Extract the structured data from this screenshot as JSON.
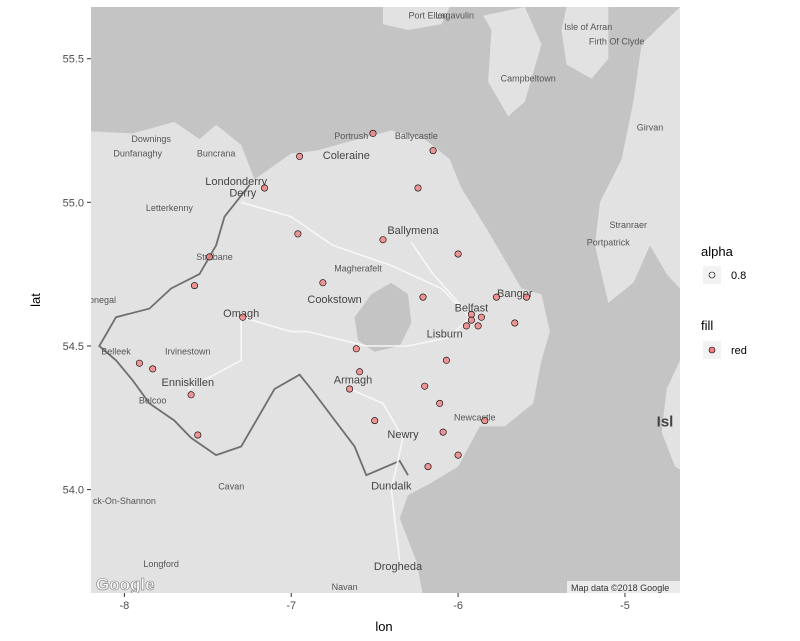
{
  "chart_data": {
    "type": "scatter",
    "xlabel": "lon",
    "ylabel": "lat",
    "xlim": [
      -8.2,
      -4.67
    ],
    "ylim": [
      53.64,
      55.68
    ],
    "x_ticks": [
      -8,
      -7,
      -6,
      -5
    ],
    "y_ticks": [
      54.0,
      54.5,
      55.0,
      55.5
    ],
    "x_tick_labels": [
      "-8",
      "-7",
      "-6",
      "-5"
    ],
    "y_tick_labels": [
      "54.0",
      "54.5",
      "55.0",
      "55.5"
    ],
    "point_color": "#f08080",
    "point_stroke": "#000000",
    "points": [
      {
        "lon": -6.51,
        "lat": 55.24
      },
      {
        "lon": -6.15,
        "lat": 55.18
      },
      {
        "lon": -6.95,
        "lat": 55.16
      },
      {
        "lon": -7.16,
        "lat": 55.05
      },
      {
        "lon": -6.24,
        "lat": 55.05
      },
      {
        "lon": -6.96,
        "lat": 54.89
      },
      {
        "lon": -6.45,
        "lat": 54.87
      },
      {
        "lon": -7.49,
        "lat": 54.81
      },
      {
        "lon": -6.0,
        "lat": 54.82
      },
      {
        "lon": -6.81,
        "lat": 54.72
      },
      {
        "lon": -7.58,
        "lat": 54.71
      },
      {
        "lon": -6.21,
        "lat": 54.67
      },
      {
        "lon": -5.77,
        "lat": 54.67
      },
      {
        "lon": -5.59,
        "lat": 54.67
      },
      {
        "lon": -5.92,
        "lat": 54.61
      },
      {
        "lon": -5.86,
        "lat": 54.6
      },
      {
        "lon": -5.92,
        "lat": 54.59
      },
      {
        "lon": -5.95,
        "lat": 54.57
      },
      {
        "lon": -5.88,
        "lat": 54.57
      },
      {
        "lon": -5.66,
        "lat": 54.58
      },
      {
        "lon": -7.29,
        "lat": 54.6
      },
      {
        "lon": -6.61,
        "lat": 54.49
      },
      {
        "lon": -6.07,
        "lat": 54.45
      },
      {
        "lon": -7.91,
        "lat": 54.44
      },
      {
        "lon": -7.83,
        "lat": 54.42
      },
      {
        "lon": -6.59,
        "lat": 54.41
      },
      {
        "lon": -6.65,
        "lat": 54.35
      },
      {
        "lon": -6.2,
        "lat": 54.36
      },
      {
        "lon": -7.6,
        "lat": 54.33
      },
      {
        "lon": -6.11,
        "lat": 54.3
      },
      {
        "lon": -6.5,
        "lat": 54.24
      },
      {
        "lon": -5.84,
        "lat": 54.24
      },
      {
        "lon": -6.09,
        "lat": 54.2
      },
      {
        "lon": -7.56,
        "lat": 54.19
      },
      {
        "lon": -6.0,
        "lat": 54.12
      },
      {
        "lon": -6.18,
        "lat": 54.08
      }
    ]
  },
  "legend": {
    "alpha_title": "alpha",
    "alpha_label": "0.8",
    "fill_title": "fill",
    "fill_label": "red"
  },
  "basemap": {
    "credit": "Map data ©2018 Google",
    "logo": "Google",
    "land_color": "#e2e2e2",
    "sea_color": "#c4c4c4",
    "places": [
      {
        "name": "Port Ellen",
        "lon": -6.18,
        "lat": 55.64,
        "size": "small"
      },
      {
        "name": "Lagavulin",
        "lon": -6.02,
        "lat": 55.64,
        "size": "small"
      },
      {
        "name": "Isle of Arran",
        "lon": -5.22,
        "lat": 55.6,
        "size": "small"
      },
      {
        "name": "Campbeltown",
        "lon": -5.58,
        "lat": 55.42,
        "size": "small"
      },
      {
        "name": "Girvan",
        "lon": -4.85,
        "lat": 55.25,
        "size": "small"
      },
      {
        "name": "Portrush",
        "lon": -6.64,
        "lat": 55.22,
        "size": "small"
      },
      {
        "name": "Ballycastle",
        "lon": -6.25,
        "lat": 55.22,
        "size": "small"
      },
      {
        "name": "Coleraine",
        "lon": -6.67,
        "lat": 55.15,
        "size": "big"
      },
      {
        "name": "Downings",
        "lon": -7.84,
        "lat": 55.21,
        "size": "small"
      },
      {
        "name": "Dunfanaghy",
        "lon": -7.92,
        "lat": 55.16,
        "size": "small"
      },
      {
        "name": "Buncrana",
        "lon": -7.45,
        "lat": 55.16,
        "size": "small"
      },
      {
        "name": "Londonderry",
        "lon": -7.33,
        "lat": 55.06,
        "size": "big"
      },
      {
        "name": "Derry",
        "lon": -7.29,
        "lat": 55.02,
        "size": "big"
      },
      {
        "name": "Letterkenny",
        "lon": -7.73,
        "lat": 54.97,
        "size": "small"
      },
      {
        "name": "Ballymena",
        "lon": -6.27,
        "lat": 54.89,
        "size": "big"
      },
      {
        "name": "Stranraer",
        "lon": -4.98,
        "lat": 54.91,
        "size": "small"
      },
      {
        "name": "Portpatrick",
        "lon": -5.1,
        "lat": 54.85,
        "size": "small"
      },
      {
        "name": "Strabane",
        "lon": -7.46,
        "lat": 54.8,
        "size": "small"
      },
      {
        "name": "Magherafelt",
        "lon": -6.6,
        "lat": 54.76,
        "size": "small"
      },
      {
        "name": "Cookstown",
        "lon": -6.74,
        "lat": 54.65,
        "size": "big"
      },
      {
        "name": "Donegal",
        "lon": -8.15,
        "lat": 54.65,
        "size": "small"
      },
      {
        "name": "Bangor",
        "lon": -5.66,
        "lat": 54.67,
        "size": "big"
      },
      {
        "name": "Belfast",
        "lon": -5.92,
        "lat": 54.62,
        "size": "big"
      },
      {
        "name": "Omagh",
        "lon": -7.3,
        "lat": 54.6,
        "size": "big"
      },
      {
        "name": "Lisburn",
        "lon": -6.08,
        "lat": 54.53,
        "size": "big"
      },
      {
        "name": "Irvinestown",
        "lon": -7.62,
        "lat": 54.47,
        "size": "small"
      },
      {
        "name": "Belleek",
        "lon": -8.05,
        "lat": 54.47,
        "size": "small"
      },
      {
        "name": "Enniskillen",
        "lon": -7.62,
        "lat": 54.36,
        "size": "big"
      },
      {
        "name": "Armagh",
        "lon": -6.63,
        "lat": 54.37,
        "size": "big"
      },
      {
        "name": "Belcoo",
        "lon": -7.83,
        "lat": 54.3,
        "size": "small"
      },
      {
        "name": "Newcastle",
        "lon": -5.9,
        "lat": 54.24,
        "size": "small"
      },
      {
        "name": "Newry",
        "lon": -6.33,
        "lat": 54.18,
        "size": "big"
      },
      {
        "name": "Dundalk",
        "lon": -6.4,
        "lat": 54.0,
        "size": "big"
      },
      {
        "name": "Cavan",
        "lon": -7.36,
        "lat": 54.0,
        "size": "small"
      },
      {
        "name": "ck-On-Shannon",
        "lon": -8.0,
        "lat": 53.95,
        "size": "small"
      },
      {
        "name": "Longford",
        "lon": -7.78,
        "lat": 53.73,
        "size": "small"
      },
      {
        "name": "Drogheda",
        "lon": -6.36,
        "lat": 53.72,
        "size": "big"
      },
      {
        "name": "Navan",
        "lon": -6.68,
        "lat": 53.65,
        "size": "small"
      },
      {
        "name": "Isl",
        "lon": -4.76,
        "lat": 54.22,
        "size": "huge"
      },
      {
        "name": "Firth Of Clyde",
        "lon": -5.05,
        "lat": 55.55,
        "size": "small"
      }
    ]
  }
}
